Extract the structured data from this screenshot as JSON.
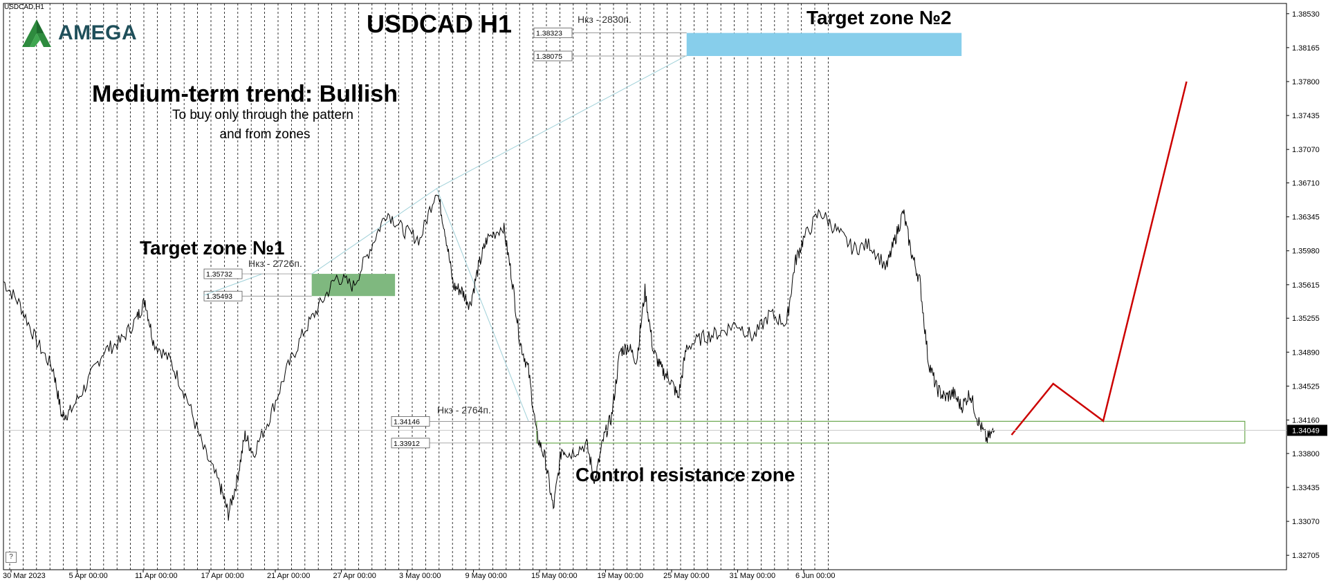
{
  "symbol_label": "USDCAD,H1",
  "logo_text": "AMEGA",
  "title": "USDCAD H1",
  "annotations": {
    "trend": "Medium-term trend: Bullish",
    "note_line1": "To buy only through the pattern",
    "note_line2": "and from zones",
    "target1": "Target zone №1",
    "target2": "Target zone №2",
    "control_zone": "Control resistance zone",
    "nkz_target1": "Нкз - 2726п.",
    "nkz_target2": "Нкз - 2830п.",
    "nkz_control": "Нкз - 2764п."
  },
  "help_button": "?",
  "colors": {
    "target_zone_1": "#7fb87f",
    "target_zone_2": "#87ceeb",
    "control_zone_border": "#6aa84f",
    "forecast_line": "#cc0000",
    "price_line": "#000000",
    "grid": "#000000"
  },
  "chart_data": {
    "type": "line",
    "instrument": "USDCAD",
    "timeframe": "H1",
    "x_ticks": [
      "30 Mar 2023",
      "5 Apr 00:00",
      "11 Apr 00:00",
      "17 Apr 00:00",
      "21 Apr 00:00",
      "27 Apr 00:00",
      "3 May 00:00",
      "9 May 00:00",
      "15 May 00:00",
      "19 May 00:00",
      "25 May 00:00",
      "31 May 00:00",
      "6 Jun 00:00"
    ],
    "y_ticks": [
      1.3853,
      1.38165,
      1.378,
      1.37435,
      1.3707,
      1.3671,
      1.36345,
      1.3598,
      1.35615,
      1.35255,
      1.3489,
      1.34525,
      1.3416,
      1.338,
      1.33435,
      1.3307,
      1.32705
    ],
    "ylim": [
      1.3255,
      1.3864
    ],
    "current_price": 1.34049,
    "price_series": [
      [
        0,
        1.3565
      ],
      [
        2,
        1.354
      ],
      [
        4,
        1.35
      ],
      [
        6,
        1.347
      ],
      [
        7,
        1.342
      ],
      [
        8,
        1.3425
      ],
      [
        10,
        1.3455
      ],
      [
        12,
        1.349
      ],
      [
        14,
        1.35
      ],
      [
        16,
        1.3525
      ],
      [
        17,
        1.3545
      ],
      [
        18,
        1.35
      ],
      [
        20,
        1.348
      ],
      [
        22,
        1.344
      ],
      [
        24,
        1.3385
      ],
      [
        26,
        1.3345
      ],
      [
        27,
        1.3315
      ],
      [
        28,
        1.335
      ],
      [
        29,
        1.34
      ],
      [
        30,
        1.338
      ],
      [
        32,
        1.342
      ],
      [
        34,
        1.347
      ],
      [
        36,
        1.351
      ],
      [
        38,
        1.354
      ],
      [
        40,
        1.357
      ],
      [
        42,
        1.356
      ],
      [
        44,
        1.36
      ],
      [
        46,
        1.364
      ],
      [
        48,
        1.362
      ],
      [
        50,
        1.361
      ],
      [
        52,
        1.3665
      ],
      [
        53,
        1.362
      ],
      [
        54,
        1.356
      ],
      [
        55,
        1.3555
      ],
      [
        56,
        1.354
      ],
      [
        57,
        1.358
      ],
      [
        58,
        1.361
      ],
      [
        60,
        1.3625
      ],
      [
        61,
        1.357
      ],
      [
        62,
        1.35
      ],
      [
        63,
        1.347
      ],
      [
        64,
        1.34
      ],
      [
        65,
        1.3375
      ],
      [
        66,
        1.332
      ],
      [
        67,
        1.3385
      ],
      [
        68,
        1.338
      ],
      [
        70,
        1.339
      ],
      [
        71,
        1.335
      ],
      [
        72,
        1.3395
      ],
      [
        73,
        1.342
      ],
      [
        74,
        1.349
      ],
      [
        75,
        1.3495
      ],
      [
        76,
        1.348
      ],
      [
        77,
        1.3555
      ],
      [
        78,
        1.349
      ],
      [
        79,
        1.347
      ],
      [
        80,
        1.346
      ],
      [
        81,
        1.344
      ],
      [
        82,
        1.3495
      ],
      [
        84,
        1.3505
      ],
      [
        86,
        1.351
      ],
      [
        88,
        1.352
      ],
      [
        90,
        1.3505
      ],
      [
        92,
        1.353
      ],
      [
        94,
        1.352
      ],
      [
        95,
        1.3585
      ],
      [
        96,
        1.361
      ],
      [
        98,
        1.364
      ],
      [
        100,
        1.362
      ],
      [
        102,
        1.36
      ],
      [
        104,
        1.3605
      ],
      [
        106,
        1.358
      ],
      [
        107,
        1.361
      ],
      [
        108,
        1.364
      ],
      [
        109,
        1.3595
      ],
      [
        110,
        1.3565
      ],
      [
        111,
        1.348
      ],
      [
        112,
        1.345
      ],
      [
        113,
        1.344
      ],
      [
        114,
        1.3445
      ],
      [
        115,
        1.343
      ],
      [
        116,
        1.3445
      ],
      [
        117,
        1.3415
      ],
      [
        118,
        1.3395
      ],
      [
        119,
        1.3405
      ]
    ],
    "price_series_x_range": [
      0,
      119
    ],
    "zones": [
      {
        "label": "Target zone №2",
        "high": 1.38323,
        "low": 1.38075
      },
      {
        "label": "Target zone №1",
        "high": 1.35732,
        "low": 1.35493
      },
      {
        "label": "Control resistance zone",
        "high": 1.34146,
        "low": 1.33912
      }
    ],
    "forecast": [
      [
        121,
        1.34
      ],
      [
        126,
        1.3455
      ],
      [
        132,
        1.3415
      ],
      [
        142,
        1.378
      ]
    ],
    "projection_lines": [
      {
        "from": [
          24,
          1.355
        ],
        "to": [
          31,
          1.3573
        ]
      },
      {
        "from": [
          37,
          1.3573
        ],
        "to": [
          52,
          1.3665
        ]
      },
      {
        "from": [
          52,
          1.3665
        ],
        "to": [
          82,
          1.3808
        ]
      },
      {
        "from": [
          52,
          1.3665
        ],
        "to": [
          63,
          1.3415
        ]
      }
    ]
  }
}
